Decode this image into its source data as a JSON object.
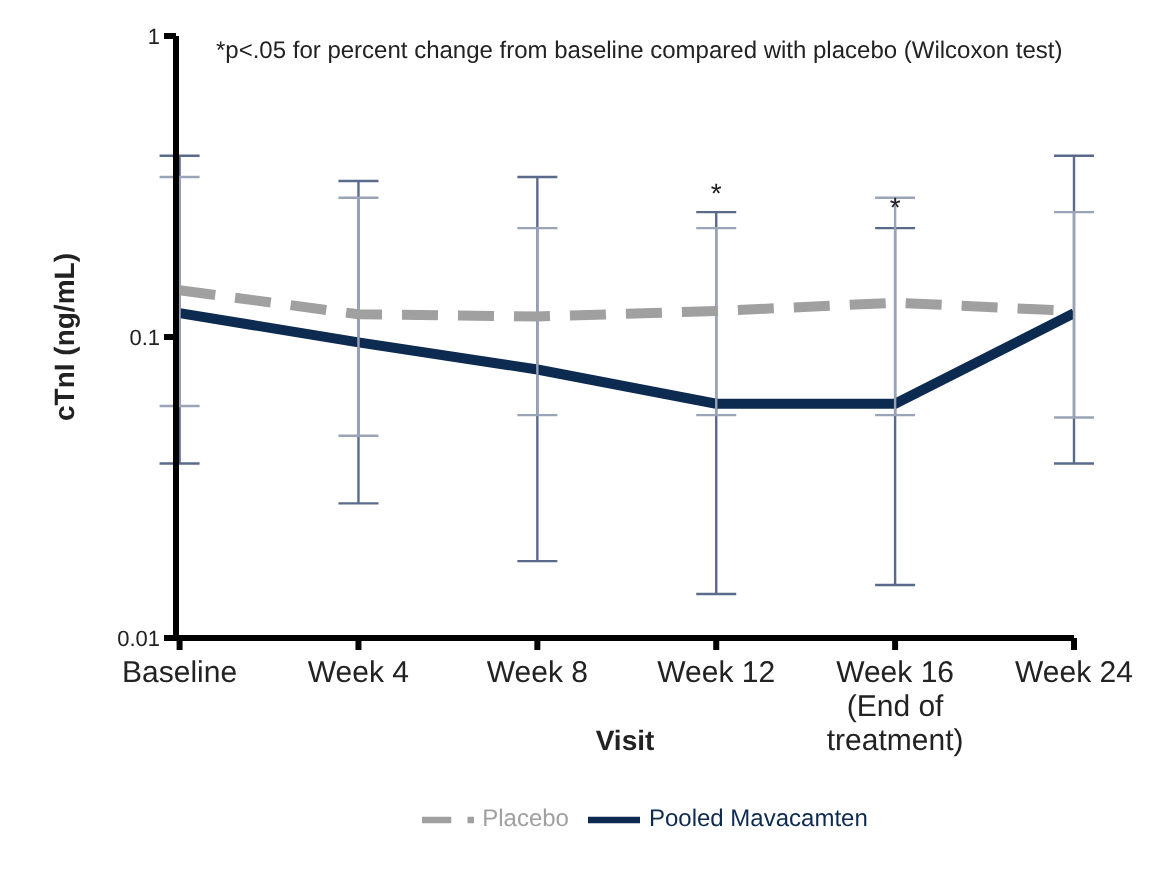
{
  "chart_data": {
    "type": "line",
    "xlabel": "Visit",
    "ylabel": "cTnI (ng/mL)",
    "categories": [
      "Baseline",
      "Week 4",
      "Week 8",
      "Week 12",
      "Week 16 (End of treatment)",
      "Week 24"
    ],
    "series": [
      {
        "name": "Pooled Mavacamten",
        "color": "#0d2a50",
        "line_style": "solid",
        "values": [
          0.12,
          0.096,
          0.078,
          0.06,
          0.06,
          0.12
        ],
        "errors": [
          [
            0.038,
            0.4
          ],
          [
            0.028,
            0.33
          ],
          [
            0.018,
            0.34
          ],
          [
            0.014,
            0.26
          ],
          [
            0.015,
            0.23
          ],
          [
            0.038,
            0.4
          ]
        ]
      },
      {
        "name": "Placebo",
        "color": "#a0a0a0",
        "line_style": "dashed",
        "values": [
          0.143,
          0.119,
          0.117,
          0.122,
          0.13,
          0.122
        ],
        "errors": [
          [
            0.059,
            0.34
          ],
          [
            0.047,
            0.29
          ],
          [
            0.055,
            0.23
          ],
          [
            0.055,
            0.23
          ],
          [
            0.055,
            0.29
          ],
          [
            0.054,
            0.26
          ]
        ]
      }
    ],
    "log": "y",
    "ylim": [
      0.01,
      1
    ],
    "yticks": [
      0.01,
      0.1,
      1
    ],
    "grid": false,
    "marker": "none",
    "legend": "bottom",
    "annotations": [
      "*p<.05 for percent change from baseline compared with placebo (Wilcoxon test)",
      "*",
      "*"
    ]
  }
}
